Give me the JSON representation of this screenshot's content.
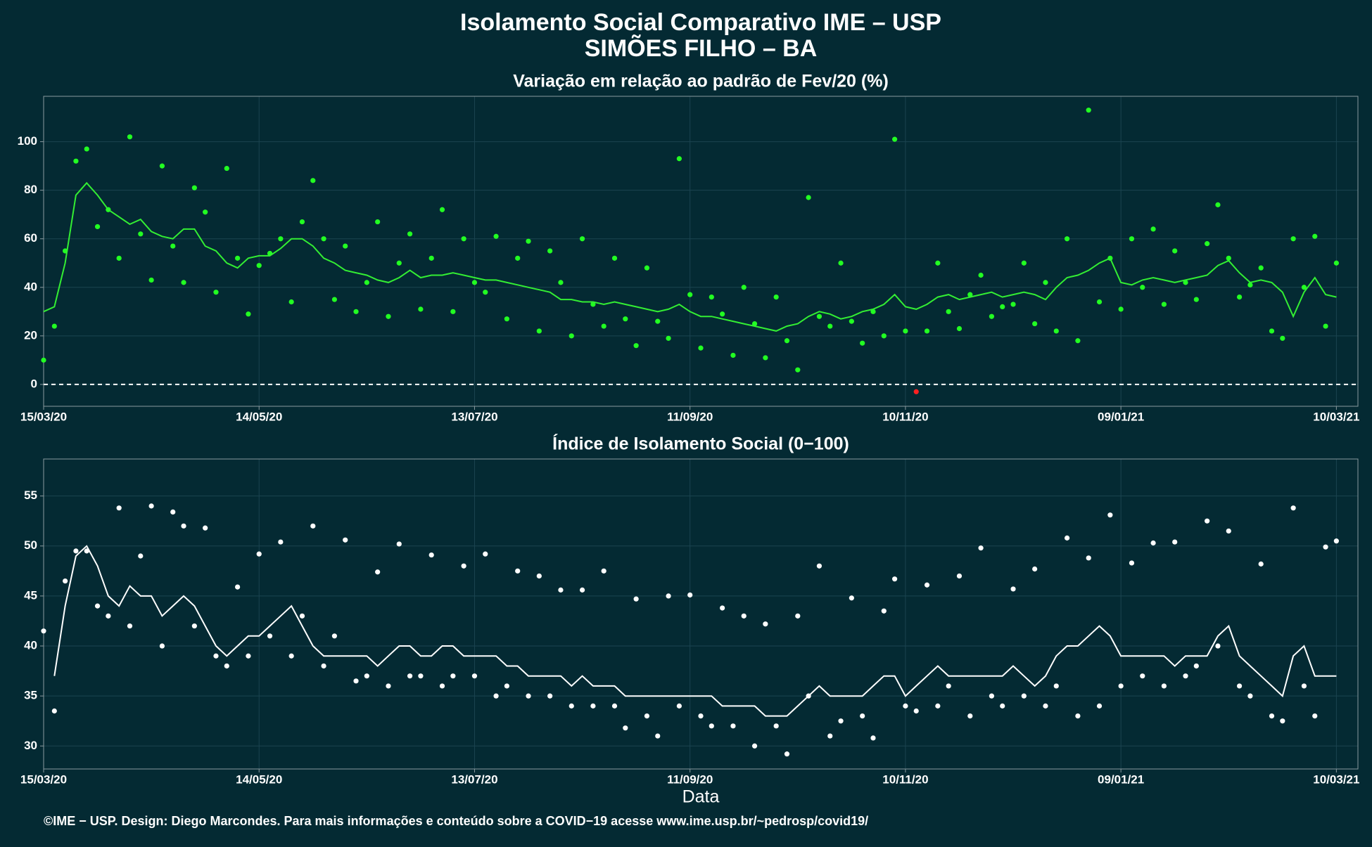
{
  "title": "Isolamento Social Comparativo IME – USP",
  "subtitle": "SIMÕES FILHO – BA",
  "footer": "©IME − USP. Design: Diego Marcondes. Para mais informações e conteúdo sobre a COVID−19 acesse www.ime.usp.br/~pedrosp/covid19/",
  "chart_data": [
    {
      "type": "scatter",
      "title": "Variação em relação ao padrão de Fev/20 (%)",
      "x": [
        "2020-03-15",
        "2020-03-18",
        "2020-03-21",
        "2020-03-24",
        "2020-03-27",
        "2020-03-30",
        "2020-04-02",
        "2020-04-05",
        "2020-04-08",
        "2020-04-11",
        "2020-04-14",
        "2020-04-17",
        "2020-04-20",
        "2020-04-23",
        "2020-04-26",
        "2020-04-29",
        "2020-05-02",
        "2020-05-05",
        "2020-05-08",
        "2020-05-11",
        "2020-05-14",
        "2020-05-17",
        "2020-05-20",
        "2020-05-23",
        "2020-05-26",
        "2020-05-29",
        "2020-06-01",
        "2020-06-04",
        "2020-06-07",
        "2020-06-10",
        "2020-06-13",
        "2020-06-16",
        "2020-06-19",
        "2020-06-22",
        "2020-06-25",
        "2020-06-28",
        "2020-07-01",
        "2020-07-04",
        "2020-07-07",
        "2020-07-10",
        "2020-07-13",
        "2020-07-16",
        "2020-07-19",
        "2020-07-22",
        "2020-07-25",
        "2020-07-28",
        "2020-07-31",
        "2020-08-03",
        "2020-08-06",
        "2020-08-09",
        "2020-08-12",
        "2020-08-15",
        "2020-08-18",
        "2020-08-21",
        "2020-08-24",
        "2020-08-27",
        "2020-08-30",
        "2020-09-02",
        "2020-09-05",
        "2020-09-08",
        "2020-09-11",
        "2020-09-14",
        "2020-09-17",
        "2020-09-20",
        "2020-09-23",
        "2020-09-26",
        "2020-09-29",
        "2020-10-02",
        "2020-10-05",
        "2020-10-08",
        "2020-10-11",
        "2020-10-14",
        "2020-10-17",
        "2020-10-20",
        "2020-10-23",
        "2020-10-26",
        "2020-10-29",
        "2020-11-01",
        "2020-11-04",
        "2020-11-07",
        "2020-11-10",
        "2020-11-13",
        "2020-11-16",
        "2020-11-19",
        "2020-11-22",
        "2020-11-25",
        "2020-11-28",
        "2020-12-01",
        "2020-12-04",
        "2020-12-07",
        "2020-12-10",
        "2020-12-13",
        "2020-12-16",
        "2020-12-19",
        "2020-12-22",
        "2020-12-25",
        "2020-12-28",
        "2020-12-31",
        "2021-01-03",
        "2021-01-06",
        "2021-01-09",
        "2021-01-12",
        "2021-01-15",
        "2021-01-18",
        "2021-01-21",
        "2021-01-24",
        "2021-01-27",
        "2021-01-30",
        "2021-02-02",
        "2021-02-05",
        "2021-02-08",
        "2021-02-11",
        "2021-02-14",
        "2021-02-17",
        "2021-02-20",
        "2021-02-23",
        "2021-02-26",
        "2021-03-01",
        "2021-03-04",
        "2021-03-07",
        "2021-03-10"
      ],
      "series": [
        {
          "mode": "markers",
          "color": "#22ff22",
          "values": [
            10,
            24,
            55,
            92,
            97,
            65,
            72,
            52,
            102,
            62,
            43,
            90,
            57,
            42,
            81,
            71,
            38,
            89,
            52,
            29,
            49,
            54,
            60,
            34,
            67,
            84,
            60,
            35,
            57,
            30,
            42,
            67,
            28,
            50,
            62,
            31,
            52,
            72,
            30,
            60,
            42,
            38,
            61,
            27,
            52,
            59,
            22,
            55,
            42,
            20,
            60,
            33,
            24,
            52,
            27,
            16,
            48,
            26,
            19,
            93,
            37,
            15,
            36,
            29,
            12,
            40,
            25,
            11,
            36,
            18,
            6,
            77,
            28,
            24,
            50,
            26,
            17,
            30,
            20,
            101,
            22,
            -3,
            22,
            50,
            30,
            23,
            37,
            45,
            28,
            32,
            33,
            50,
            25,
            42,
            22,
            60,
            18,
            113,
            34,
            52,
            31,
            60,
            40,
            64,
            33,
            55,
            42,
            35,
            58,
            74,
            52,
            36,
            41,
            48,
            22,
            19,
            60,
            40,
            61,
            24,
            50
          ]
        },
        {
          "mode": "line",
          "color": "#33ee33",
          "values": [
            30,
            32,
            50,
            78,
            83,
            78,
            72,
            69,
            66,
            68,
            63,
            61,
            60,
            64,
            64,
            57,
            55,
            50,
            48,
            52,
            53,
            53,
            56,
            60,
            60,
            57,
            52,
            50,
            47,
            46,
            45,
            43,
            42,
            44,
            47,
            44,
            45,
            45,
            46,
            45,
            44,
            43,
            43,
            42,
            41,
            40,
            39,
            38,
            35,
            35,
            34,
            34,
            33,
            34,
            33,
            32,
            31,
            30,
            31,
            33,
            30,
            28,
            28,
            27,
            26,
            25,
            24,
            23,
            22,
            24,
            25,
            28,
            30,
            29,
            27,
            28,
            30,
            31,
            33,
            37,
            32,
            31,
            33,
            36,
            37,
            35,
            36,
            37,
            38,
            36,
            37,
            38,
            37,
            35,
            40,
            44,
            45,
            47,
            50,
            52,
            42,
            41,
            43,
            44,
            43,
            42,
            43,
            44,
            45,
            49,
            51,
            46,
            42,
            43,
            42,
            38,
            28,
            38,
            44,
            37,
            36
          ]
        }
      ],
      "negative_color": "#ff2020",
      "hline": 0,
      "xlim": [
        "2020-03-15",
        "2021-03-16"
      ],
      "xticks": [
        {
          "value": "2020-03-15",
          "label": "15/03/20"
        },
        {
          "value": "2020-05-14",
          "label": "14/05/20"
        },
        {
          "value": "2020-07-13",
          "label": "13/07/20"
        },
        {
          "value": "2020-09-11",
          "label": "11/09/20"
        },
        {
          "value": "2020-11-10",
          "label": "10/11/20"
        },
        {
          "value": "2021-01-09",
          "label": "09/01/21"
        },
        {
          "value": "2021-03-10",
          "label": "10/03/21"
        }
      ],
      "ylim": [
        -9,
        118.7
      ],
      "yticks": [
        0,
        20,
        40,
        60,
        80,
        100
      ],
      "grid": true
    },
    {
      "type": "scatter",
      "title": "Índice de Isolamento Social (0−100)",
      "xlabel": "Data",
      "x": [
        "2020-03-15",
        "2020-03-18",
        "2020-03-21",
        "2020-03-24",
        "2020-03-27",
        "2020-03-30",
        "2020-04-02",
        "2020-04-05",
        "2020-04-08",
        "2020-04-11",
        "2020-04-14",
        "2020-04-17",
        "2020-04-20",
        "2020-04-23",
        "2020-04-26",
        "2020-04-29",
        "2020-05-02",
        "2020-05-05",
        "2020-05-08",
        "2020-05-11",
        "2020-05-14",
        "2020-05-17",
        "2020-05-20",
        "2020-05-23",
        "2020-05-26",
        "2020-05-29",
        "2020-06-01",
        "2020-06-04",
        "2020-06-07",
        "2020-06-10",
        "2020-06-13",
        "2020-06-16",
        "2020-06-19",
        "2020-06-22",
        "2020-06-25",
        "2020-06-28",
        "2020-07-01",
        "2020-07-04",
        "2020-07-07",
        "2020-07-10",
        "2020-07-13",
        "2020-07-16",
        "2020-07-19",
        "2020-07-22",
        "2020-07-25",
        "2020-07-28",
        "2020-07-31",
        "2020-08-03",
        "2020-08-06",
        "2020-08-09",
        "2020-08-12",
        "2020-08-15",
        "2020-08-18",
        "2020-08-21",
        "2020-08-24",
        "2020-08-27",
        "2020-08-30",
        "2020-09-02",
        "2020-09-05",
        "2020-09-08",
        "2020-09-11",
        "2020-09-14",
        "2020-09-17",
        "2020-09-20",
        "2020-09-23",
        "2020-09-26",
        "2020-09-29",
        "2020-10-02",
        "2020-10-05",
        "2020-10-08",
        "2020-10-11",
        "2020-10-14",
        "2020-10-17",
        "2020-10-20",
        "2020-10-23",
        "2020-10-26",
        "2020-10-29",
        "2020-11-01",
        "2020-11-04",
        "2020-11-07",
        "2020-11-10",
        "2020-11-13",
        "2020-11-16",
        "2020-11-19",
        "2020-11-22",
        "2020-11-25",
        "2020-11-28",
        "2020-12-01",
        "2020-12-04",
        "2020-12-07",
        "2020-12-10",
        "2020-12-13",
        "2020-12-16",
        "2020-12-19",
        "2020-12-22",
        "2020-12-25",
        "2020-12-28",
        "2020-12-31",
        "2021-01-03",
        "2021-01-06",
        "2021-01-09",
        "2021-01-12",
        "2021-01-15",
        "2021-01-18",
        "2021-01-21",
        "2021-01-24",
        "2021-01-27",
        "2021-01-30",
        "2021-02-02",
        "2021-02-05",
        "2021-02-08",
        "2021-02-11",
        "2021-02-14",
        "2021-02-17",
        "2021-02-20",
        "2021-02-23",
        "2021-02-26",
        "2021-03-01",
        "2021-03-04",
        "2021-03-07",
        "2021-03-10"
      ],
      "series": [
        {
          "mode": "markers",
          "color": "#ffffff",
          "values": [
            41.5,
            33.5,
            46.5,
            49.5,
            49.5,
            44,
            43,
            53.8,
            42,
            49,
            54,
            40,
            53.4,
            52,
            42,
            51.8,
            39,
            38,
            45.9,
            39,
            49.2,
            41,
            50.4,
            39,
            43,
            52,
            38,
            41,
            50.6,
            36.5,
            37,
            47.4,
            36,
            50.2,
            37,
            37,
            49.1,
            36,
            37,
            48,
            37,
            49.2,
            35,
            36,
            47.5,
            35,
            47,
            35,
            45.6,
            34,
            45.6,
            34,
            47.5,
            34,
            31.8,
            44.7,
            33,
            31,
            45,
            34,
            45.1,
            33,
            32,
            43.8,
            32,
            43,
            30,
            42.2,
            32,
            29.2,
            43,
            35,
            48,
            31,
            32.5,
            44.8,
            33,
            30.8,
            43.5,
            46.7,
            34,
            33.5,
            46.1,
            34,
            36,
            47,
            33,
            49.8,
            35,
            34,
            45.7,
            35,
            47.7,
            34,
            36,
            50.8,
            33,
            48.8,
            34,
            53.1,
            36,
            48.3,
            37,
            50.3,
            36,
            50.4,
            37,
            38,
            52.5,
            40,
            51.5,
            36,
            35,
            48.2,
            33,
            32.5,
            53.8,
            36,
            33,
            49.9,
            50.5
          ]
        },
        {
          "mode": "line",
          "color": "#ffffff",
          "values": [
            null,
            37,
            44,
            49,
            50,
            48,
            45,
            44,
            46,
            45,
            45,
            43,
            44,
            45,
            44,
            42,
            40,
            39,
            40,
            41,
            41,
            42,
            43,
            44,
            42,
            40,
            39,
            39,
            39,
            39,
            39,
            38,
            39,
            40,
            40,
            39,
            39,
            40,
            40,
            39,
            39,
            39,
            39,
            38,
            38,
            37,
            37,
            37,
            37,
            36,
            37,
            36,
            36,
            36,
            35,
            35,
            35,
            35,
            35,
            35,
            35,
            35,
            35,
            34,
            34,
            34,
            34,
            33,
            33,
            33,
            34,
            35,
            36,
            35,
            35,
            35,
            35,
            36,
            37,
            37,
            35,
            36,
            37,
            38,
            37,
            37,
            37,
            37,
            37,
            37,
            38,
            37,
            36,
            37,
            39,
            40,
            40,
            41,
            42,
            41,
            39,
            39,
            39,
            39,
            39,
            38,
            39,
            39,
            39,
            41,
            42,
            39,
            38,
            37,
            36,
            35,
            39,
            40,
            37,
            37,
            37
          ]
        }
      ],
      "xlim": [
        "2020-03-15",
        "2021-03-16"
      ],
      "xticks": [
        {
          "value": "2020-03-15",
          "label": "15/03/20"
        },
        {
          "value": "2020-05-14",
          "label": "14/05/20"
        },
        {
          "value": "2020-07-13",
          "label": "13/07/20"
        },
        {
          "value": "2020-09-11",
          "label": "11/09/20"
        },
        {
          "value": "2020-11-10",
          "label": "10/11/20"
        },
        {
          "value": "2021-01-09",
          "label": "09/01/21"
        },
        {
          "value": "2021-03-10",
          "label": "10/03/21"
        }
      ],
      "ylim": [
        27.7,
        58.7
      ],
      "yticks": [
        30,
        35,
        40,
        45,
        50,
        55
      ],
      "grid": true
    }
  ]
}
